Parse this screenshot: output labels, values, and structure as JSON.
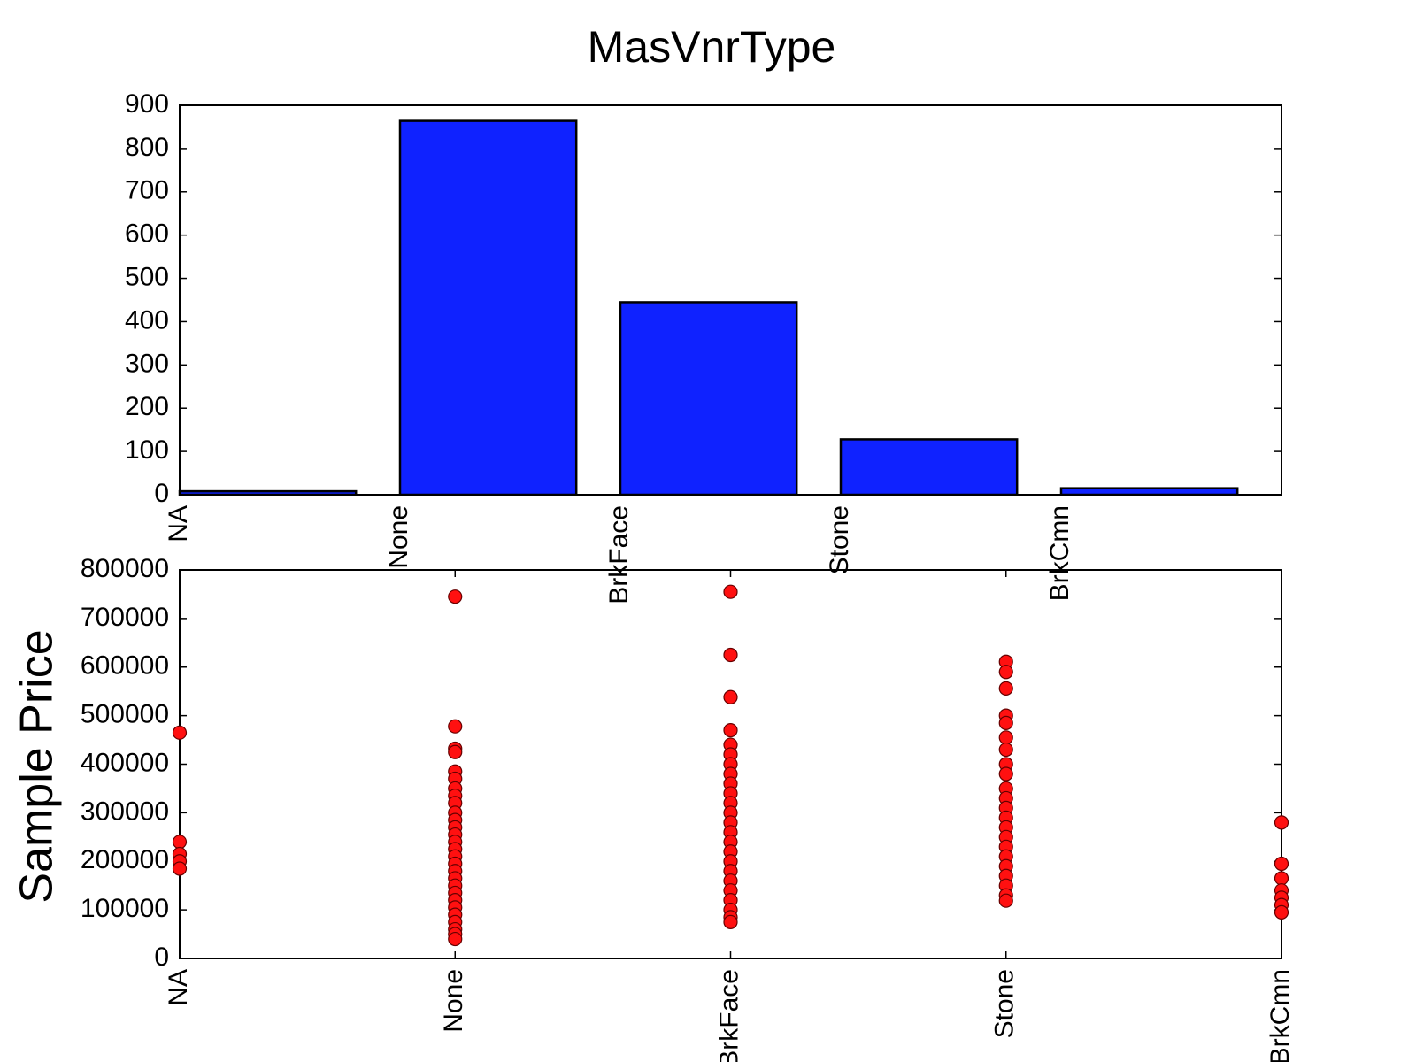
{
  "chart_data": [
    {
      "type": "bar",
      "title": "MasVnrType",
      "categories": [
        "NA",
        "None",
        "BrkFace",
        "Stone",
        "BrkCmn"
      ],
      "values": [
        8,
        864,
        445,
        128,
        15
      ],
      "color": "#0f22ff",
      "ylim": [
        0,
        900
      ],
      "yticks": [
        0,
        100,
        200,
        300,
        400,
        500,
        600,
        700,
        800,
        900
      ]
    },
    {
      "type": "scatter",
      "ylabel": "Sample Price",
      "categories": [
        "NA",
        "None",
        "BrkFace",
        "Stone",
        "BrkCmn"
      ],
      "color": "#ff1010",
      "x": [
        "NA",
        "NA",
        "NA",
        "NA",
        "NA",
        "None",
        "None",
        "None",
        "None",
        "None",
        "None",
        "None",
        "None",
        "None",
        "None",
        "None",
        "None",
        "None",
        "None",
        "None",
        "None",
        "None",
        "None",
        "None",
        "None",
        "None",
        "None",
        "None",
        "None",
        "None",
        "None",
        "None",
        "None",
        "BrkFace",
        "BrkFace",
        "BrkFace",
        "BrkFace",
        "BrkFace",
        "BrkFace",
        "BrkFace",
        "BrkFace",
        "BrkFace",
        "BrkFace",
        "BrkFace",
        "BrkFace",
        "BrkFace",
        "BrkFace",
        "BrkFace",
        "BrkFace",
        "BrkFace",
        "BrkFace",
        "BrkFace",
        "BrkFace",
        "BrkFace",
        "BrkFace",
        "BrkFace",
        "BrkFace",
        "Stone",
        "Stone",
        "Stone",
        "Stone",
        "Stone",
        "Stone",
        "Stone",
        "Stone",
        "Stone",
        "Stone",
        "Stone",
        "Stone",
        "Stone",
        "Stone",
        "Stone",
        "Stone",
        "Stone",
        "Stone",
        "Stone",
        "Stone",
        "Stone",
        "Stone",
        "BrkCmn",
        "BrkCmn",
        "BrkCmn",
        "BrkCmn",
        "BrkCmn",
        "BrkCmn",
        "BrkCmn"
      ],
      "values": [
        465000,
        240000,
        215000,
        200000,
        185000,
        745000,
        478000,
        432000,
        425000,
        385000,
        370000,
        350000,
        335000,
        320000,
        300000,
        285000,
        270000,
        255000,
        240000,
        225000,
        210000,
        195000,
        180000,
        165000,
        150000,
        135000,
        120000,
        105000,
        90000,
        75000,
        60000,
        50000,
        40000,
        755000,
        625000,
        538000,
        470000,
        440000,
        420000,
        400000,
        380000,
        360000,
        340000,
        320000,
        300000,
        280000,
        260000,
        240000,
        220000,
        200000,
        180000,
        160000,
        140000,
        120000,
        100000,
        85000,
        75000,
        611000,
        590000,
        556000,
        500000,
        485000,
        455000,
        430000,
        400000,
        380000,
        350000,
        330000,
        310000,
        290000,
        270000,
        250000,
        230000,
        210000,
        190000,
        170000,
        150000,
        130000,
        119000,
        280000,
        195000,
        165000,
        140000,
        125000,
        110000,
        95000
      ],
      "ylim": [
        0,
        800000
      ],
      "yticks": [
        0,
        100000,
        200000,
        300000,
        400000,
        500000,
        600000,
        700000,
        800000
      ]
    }
  ]
}
